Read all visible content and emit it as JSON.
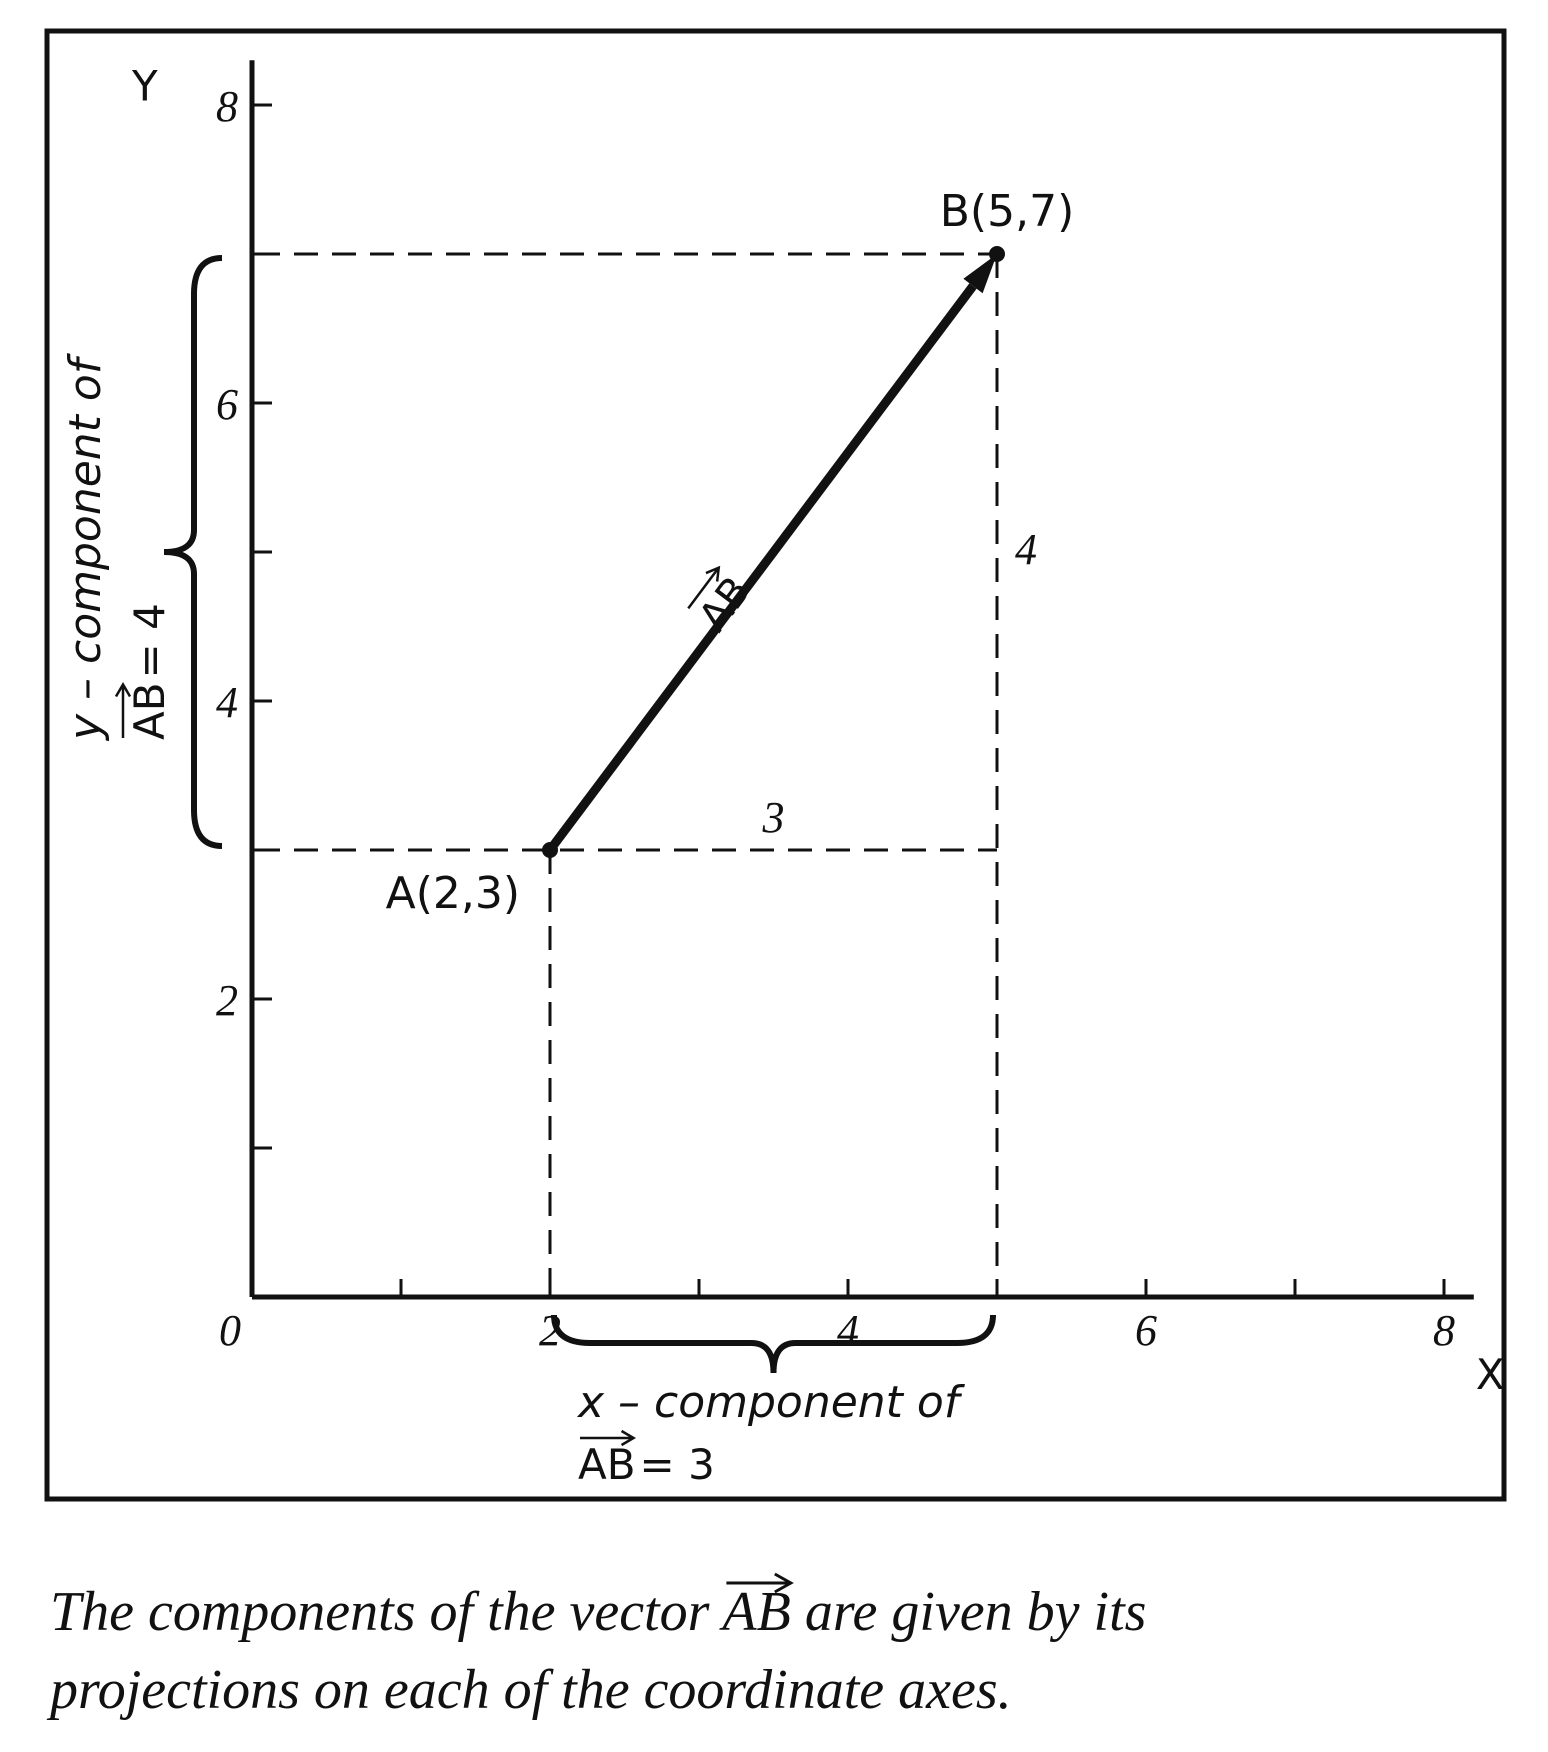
{
  "diagram": {
    "x_axis": {
      "label": "X",
      "lim": [
        0,
        8.2
      ],
      "ticks": [
        1,
        2,
        3,
        4,
        5,
        6,
        7,
        8
      ],
      "tick_labels": [
        0,
        2,
        4,
        6,
        8
      ]
    },
    "y_axis": {
      "label": "Y",
      "lim": [
        0,
        8.3
      ],
      "ticks": [
        1,
        2,
        3,
        4,
        5,
        6,
        7,
        8
      ],
      "tick_labels": [
        2,
        4,
        6,
        8
      ]
    },
    "points": [
      {
        "label": "A(2,3)",
        "x": 2,
        "y": 3
      },
      {
        "label": "B(5,7)",
        "x": 5,
        "y": 7
      }
    ],
    "vector": {
      "name": "AB"
    },
    "x_component": {
      "title": "x – component of",
      "vector": "AB",
      "equals": "= 3",
      "value": 3
    },
    "y_component": {
      "title": "y – component of",
      "vector": "AB",
      "equals": "= 4",
      "value": 4
    },
    "caption": {
      "line1_start": "The components of the vector ",
      "line1_vector": "AB",
      "line1_end": " are given by its",
      "line2": "projections on each of the coordinate axes."
    }
  }
}
